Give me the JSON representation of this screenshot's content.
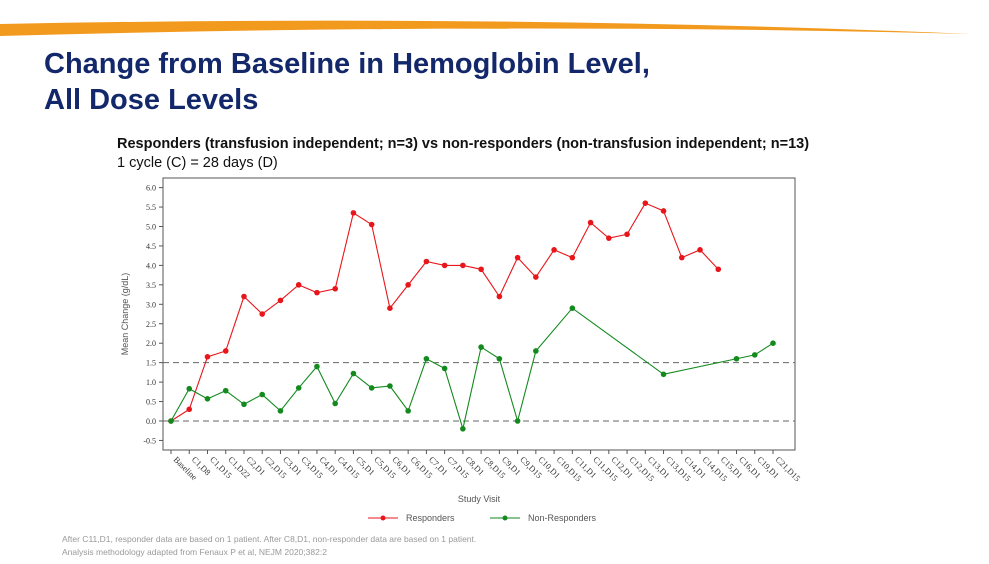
{
  "header": {
    "title_line1": "Change from Baseline in Hemoglobin Level,",
    "title_line2": "All Dose Levels"
  },
  "colors": {
    "accent": "#f29a1e",
    "title": "#13286b",
    "responders": "#e8161b",
    "non_responders": "#138a1e"
  },
  "chart_data": {
    "type": "line",
    "title": "Responders (transfusion independent; n=3) vs non-responders (non-transfusion independent; n=13)",
    "subtitle": "1 cycle (C) = 28 days (D)",
    "xlabel": "Study Visit",
    "ylabel": "Mean Change (g/dL)",
    "ylim": [
      -0.5,
      6.0
    ],
    "yticks": [
      "-0.5",
      "0.0",
      "0.5",
      "1.0",
      "1.5",
      "2.0",
      "2.5",
      "3.0",
      "3.5",
      "4.0",
      "4.5",
      "5.0",
      "5.5",
      "6.0"
    ],
    "reference_lines": [
      0.0,
      1.5
    ],
    "legend_position": "bottom",
    "categories": [
      "Baseline",
      "C1,D8",
      "C1,D15",
      "C1,D22",
      "C2,D1",
      "C2,D15",
      "C3,D1",
      "C3,D15",
      "C4,D1",
      "C4,D15",
      "C5,D1",
      "C5,D15",
      "C6,D1",
      "C6,D15",
      "C7,D1",
      "C7,D15",
      "C8,D1",
      "C8,D15",
      "C9,D1",
      "C9,D15",
      "C10,D1",
      "C10,D15",
      "C11,D1",
      "C11,D15",
      "C12,D1",
      "C12,D15",
      "C13,D1",
      "C13,D15",
      "C14,D1",
      "C14,D15",
      "C15,D1",
      "C16,D1",
      "C19,D1",
      "C21,D15"
    ],
    "series": [
      {
        "name": "Responders",
        "values": [
          0,
          0.3,
          1.65,
          1.8,
          3.2,
          2.75,
          3.1,
          3.5,
          3.3,
          3.4,
          5.35,
          5.05,
          2.9,
          3.5,
          4.1,
          4.0,
          4.0,
          3.9,
          3.2,
          4.2,
          3.7,
          4.4,
          4.2,
          5.1,
          4.7,
          4.8,
          5.6,
          5.4,
          4.2,
          4.4,
          3.9,
          null,
          null,
          null
        ]
      },
      {
        "name": "Non-Responders",
        "values": [
          0,
          0.83,
          0.57,
          0.78,
          0.43,
          0.68,
          0.26,
          0.85,
          1.4,
          0.45,
          1.22,
          0.85,
          0.9,
          0.26,
          1.6,
          1.35,
          -0.2,
          1.9,
          1.6,
          0.0,
          1.8,
          null,
          2.9,
          null,
          null,
          null,
          null,
          1.2,
          null,
          null,
          null,
          1.6,
          1.7,
          2.0
        ]
      }
    ]
  },
  "footnotes": [
    "After C11,D1, responder data are based on 1 patient. After C8,D1, non-responder data are based on 1 patient.",
    "Analysis methodology adapted from Fenaux P et al, NEJM 2020;382:2"
  ]
}
